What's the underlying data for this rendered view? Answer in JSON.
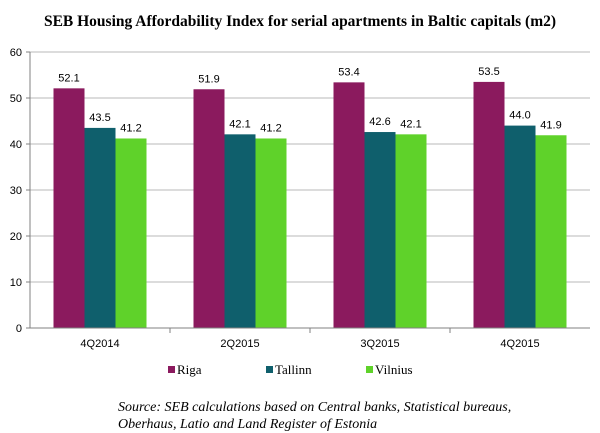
{
  "chart_data": {
    "type": "bar",
    "title": "SEB Housing Affordability Index for serial apartments in Baltic capitals (m2)",
    "categories": [
      "4Q2014",
      "2Q2015",
      "3Q2015",
      "4Q2015"
    ],
    "series": [
      {
        "name": "Riga",
        "values": [
          52.1,
          51.9,
          53.4,
          53.5
        ],
        "color": "#8b1a5e"
      },
      {
        "name": "Tallinn",
        "values": [
          43.5,
          42.1,
          42.6,
          44.0
        ],
        "color": "#0f5f6c"
      },
      {
        "name": "Vilnius",
        "values": [
          41.2,
          41.2,
          42.1,
          41.9
        ],
        "color": "#5fd22a"
      }
    ],
    "ylim": [
      0,
      60
    ],
    "yticks": [
      0,
      10,
      20,
      30,
      40,
      50,
      60
    ],
    "xlabel": "",
    "ylabel": "",
    "legend_position": "bottom",
    "grid": true
  },
  "source_line1": "Source: SEB calculations based on Central banks, Statistical bureaus,",
  "source_line2": "Oberhaus, Latio and Land Register of Estonia"
}
